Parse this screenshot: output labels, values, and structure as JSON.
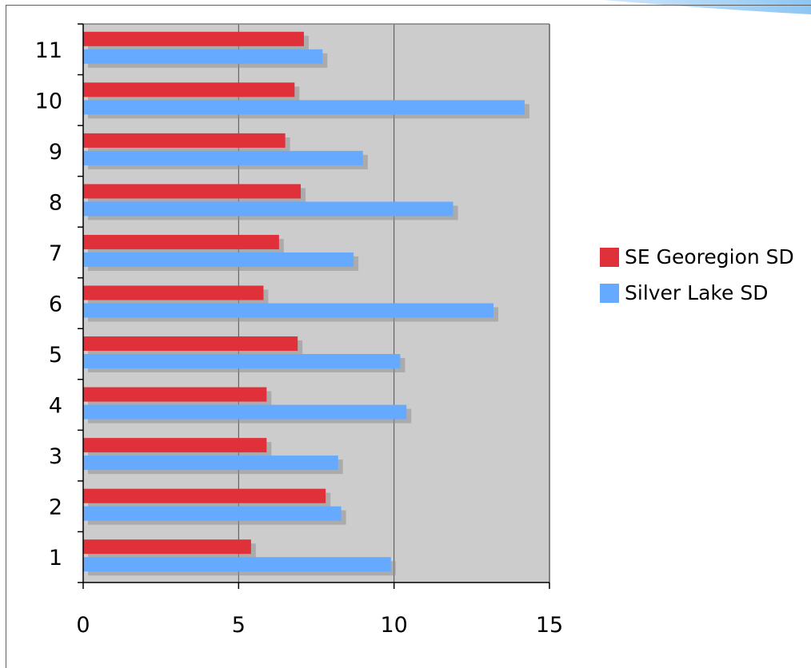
{
  "chart_data": {
    "type": "bar",
    "orientation": "horizontal",
    "categories": [
      "1",
      "2",
      "3",
      "4",
      "5",
      "6",
      "7",
      "8",
      "9",
      "10",
      "11"
    ],
    "series": [
      {
        "name": "SE Georegion SD",
        "color": "#e0303a",
        "values": [
          5.4,
          7.8,
          5.9,
          5.9,
          6.9,
          5.8,
          6.3,
          7.0,
          6.5,
          6.8,
          7.1
        ]
      },
      {
        "name": "Silver Lake SD",
        "color": "#66aaff",
        "values": [
          9.9,
          8.3,
          8.2,
          10.4,
          10.2,
          13.2,
          8.7,
          11.9,
          9.0,
          14.2,
          7.7
        ]
      }
    ],
    "xlim": [
      0,
      15
    ],
    "xticks": [
      "0",
      "5",
      "10",
      "15"
    ],
    "grid": "vertical at x ticks",
    "plot_background": "#cccccc",
    "legend_position": "right",
    "title": "",
    "xlabel": "",
    "ylabel": ""
  }
}
